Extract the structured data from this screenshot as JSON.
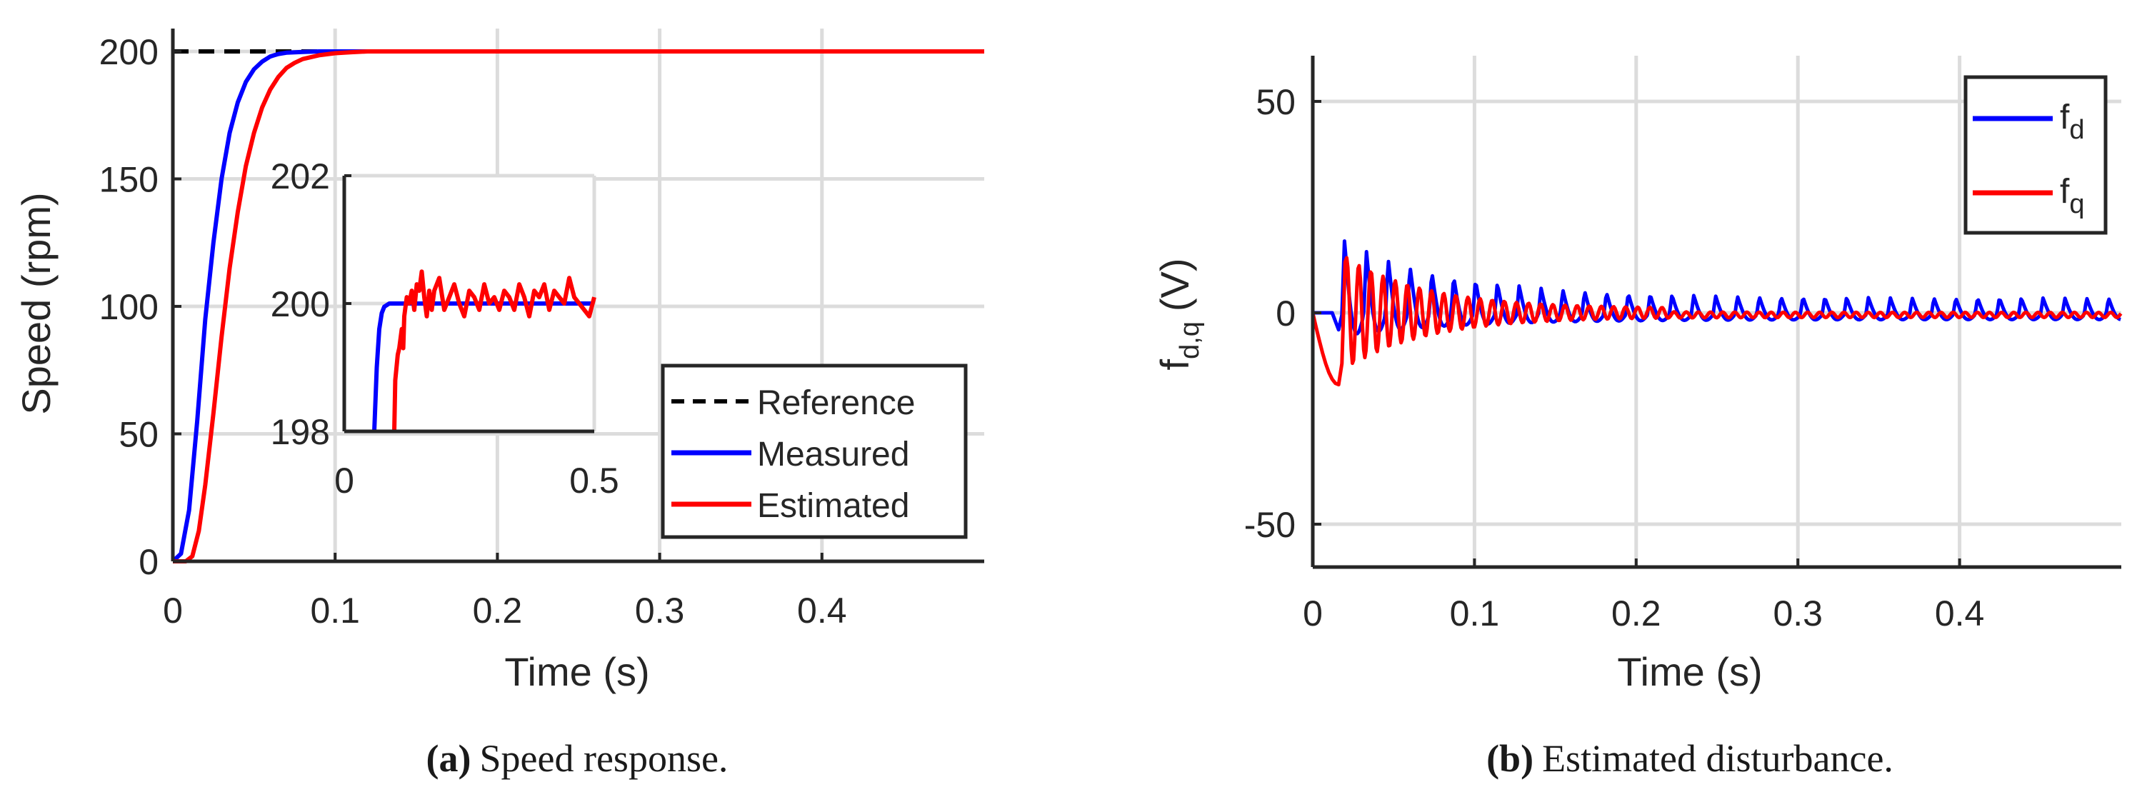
{
  "chart_data": [
    {
      "id": "a",
      "type": "line",
      "title": "",
      "xlabel": "Time (s)",
      "ylabel": "Speed (rpm)",
      "xlim": [
        0,
        0.5
      ],
      "ylim": [
        0,
        200
      ],
      "xticks": [
        "0",
        "0.1",
        "0.2",
        "0.3",
        "0.4"
      ],
      "yticks": [
        "0",
        "50",
        "100",
        "150",
        "200"
      ],
      "grid": true,
      "legend_position": "bottom-right",
      "series": [
        {
          "name": "Reference",
          "color": "#000000",
          "style": "dashed",
          "x": [
            0,
            0.1,
            0.5
          ],
          "y": [
            200,
            200,
            200
          ]
        },
        {
          "name": "Measured",
          "color": "#0000ff",
          "style": "solid",
          "x": [
            0,
            0.005,
            0.01,
            0.015,
            0.02,
            0.025,
            0.03,
            0.035,
            0.04,
            0.045,
            0.05,
            0.055,
            0.06,
            0.065,
            0.07,
            0.08,
            0.09,
            0.1,
            0.12,
            0.5
          ],
          "y": [
            0,
            3,
            20,
            55,
            95,
            125,
            150,
            168,
            180,
            188,
            193,
            196,
            198,
            199,
            199.5,
            199.8,
            200,
            200,
            200,
            200
          ]
        },
        {
          "name": "Estimated",
          "color": "#ff0000",
          "style": "solid",
          "x": [
            0,
            0.008,
            0.012,
            0.016,
            0.02,
            0.025,
            0.03,
            0.035,
            0.04,
            0.045,
            0.05,
            0.055,
            0.06,
            0.065,
            0.07,
            0.075,
            0.08,
            0.09,
            0.1,
            0.11,
            0.12,
            0.13,
            0.5
          ],
          "y": [
            0,
            0,
            2,
            12,
            30,
            58,
            88,
            115,
            137,
            155,
            168,
            178,
            185,
            190,
            193.5,
            195.5,
            197,
            198.5,
            199.3,
            199.7,
            200,
            200,
            200
          ]
        }
      ],
      "inset": {
        "xlim": [
          0,
          0.5
        ],
        "ylim": [
          198,
          202
        ],
        "xticks": [
          "0",
          "0.5"
        ],
        "yticks": [
          "198",
          "200",
          "202"
        ],
        "series": [
          {
            "name": "Measured",
            "color": "#0000ff",
            "x": [
              0.06,
              0.065,
              0.07,
              0.075,
              0.08,
              0.09,
              0.1,
              0.12,
              0.5
            ],
            "y": [
              198,
              199,
              199.6,
              199.85,
              199.95,
              200,
              200,
              200,
              200
            ]
          },
          {
            "name": "Estimated",
            "color": "#ff0000",
            "x": [
              0.1,
              0.102,
              0.107,
              0.11,
              0.115,
              0.118,
              0.12,
              0.125,
              0.13,
              0.135,
              0.14,
              0.145,
              0.15,
              0.155,
              0.16,
              0.165,
              0.17,
              0.175,
              0.18,
              0.19,
              0.2,
              0.21,
              0.22,
              0.23,
              0.24,
              0.25,
              0.26,
              0.27,
              0.28,
              0.29,
              0.3,
              0.31,
              0.32,
              0.33,
              0.34,
              0.35,
              0.36,
              0.37,
              0.38,
              0.39,
              0.4,
              0.41,
              0.42,
              0.43,
              0.44,
              0.45,
              0.46,
              0.47,
              0.48,
              0.49,
              0.5
            ],
            "y": [
              198,
              198.8,
              199.2,
              199.3,
              199.6,
              199.3,
              199.8,
              200.1,
              200,
              200.2,
              199.9,
              200.3,
              200.2,
              200.5,
              200.1,
              199.8,
              200.2,
              199.9,
              200.2,
              200.4,
              199.9,
              200.1,
              200.3,
              200,
              199.8,
              200.2,
              200.1,
              199.9,
              200.3,
              200,
              200.1,
              199.9,
              200.2,
              200.1,
              199.9,
              200.3,
              200.1,
              199.8,
              200.2,
              200.1,
              200.3,
              199.9,
              200.2,
              200.1,
              200,
              200.4,
              200.1,
              200,
              199.9,
              199.8,
              200.1
            ]
          }
        ]
      }
    },
    {
      "id": "b",
      "type": "line",
      "title": "",
      "xlabel": "Time (s)",
      "ylabel": "f_{d,q} (V)",
      "xlim": [
        0,
        0.5
      ],
      "ylim": [
        -60,
        60
      ],
      "xticks": [
        "0",
        "0.1",
        "0.2",
        "0.3",
        "0.4"
      ],
      "yticks": [
        "-50",
        "0",
        "50"
      ],
      "grid": true,
      "legend_position": "top-right",
      "series": [
        {
          "name": "f_d",
          "color": "#0000ff",
          "style": "solid",
          "x": [
            0,
            0.01,
            0.014,
            0.5
          ],
          "y": [
            0,
            0,
            0,
            0
          ]
        },
        {
          "name": "f_q",
          "color": "#ff0000",
          "style": "solid",
          "x": [
            0,
            0.01,
            0.015,
            0.5
          ],
          "y": [
            0,
            -10,
            -17,
            0
          ]
        }
      ]
    }
  ],
  "captions": {
    "a_label": "(a)",
    "a_text": "Speed response.",
    "b_label": "(b)",
    "b_text": "Estimated disturbance."
  },
  "labels": {
    "ylabel_b_main": "f",
    "ylabel_b_sub": "d,q",
    "ylabel_b_unit": "(V)",
    "legend_b_d_main": "f",
    "legend_b_d_sub": "d",
    "legend_b_q_main": "f",
    "legend_b_q_sub": "q"
  }
}
